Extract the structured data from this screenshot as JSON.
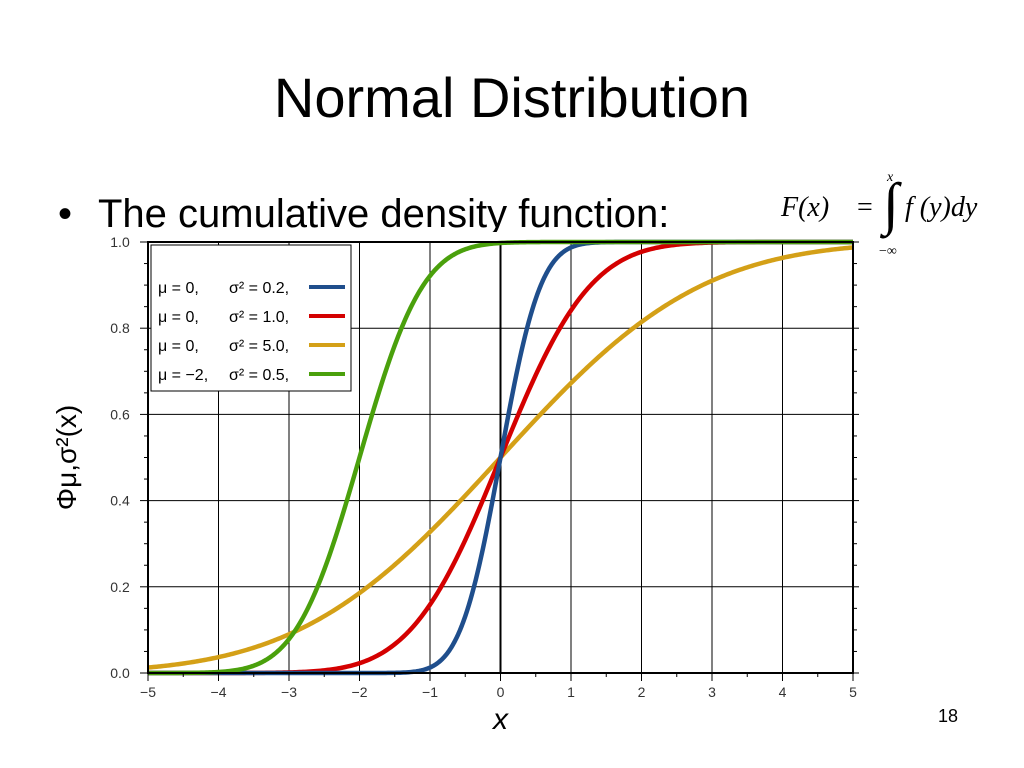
{
  "slide": {
    "title": "Normal Distribution",
    "bullet": "The cumulative density function:",
    "slide_number": "18"
  },
  "formula": {
    "lhs": "F(x)",
    "eq": "=",
    "integral": "∫",
    "upper_limit": "x",
    "lower_limit": "−∞",
    "rhs": "f (y)dy"
  },
  "chart_data": {
    "type": "line",
    "xlabel": "x",
    "ylabel": "Φμ,σ²(x)",
    "xlim": [
      -5,
      5
    ],
    "ylim": [
      0,
      1
    ],
    "xticks": [
      "−5",
      "−4",
      "−3",
      "−2",
      "−1",
      "0",
      "1",
      "2",
      "3",
      "4",
      "5"
    ],
    "yticks": [
      "0.0",
      "0.2",
      "0.4",
      "0.6",
      "0.8",
      "1.0"
    ],
    "grid": true,
    "legend_position": "top-left",
    "series": [
      {
        "mu_label": "μ = 0,",
        "sigma_label": "σ² = 0.2,",
        "mu": 0,
        "variance": 0.2,
        "color": "#1f4e8c"
      },
      {
        "mu_label": "μ = 0,",
        "sigma_label": "σ² = 1.0,",
        "mu": 0,
        "variance": 1.0,
        "color": "#d40000"
      },
      {
        "mu_label": "μ = 0,",
        "sigma_label": "σ² = 5.0,",
        "mu": 0,
        "variance": 5.0,
        "color": "#d4a017"
      },
      {
        "mu_label": "μ = −2,",
        "sigma_label": "σ² = 0.5,",
        "mu": -2,
        "variance": 0.5,
        "color": "#4aa00c"
      }
    ]
  }
}
